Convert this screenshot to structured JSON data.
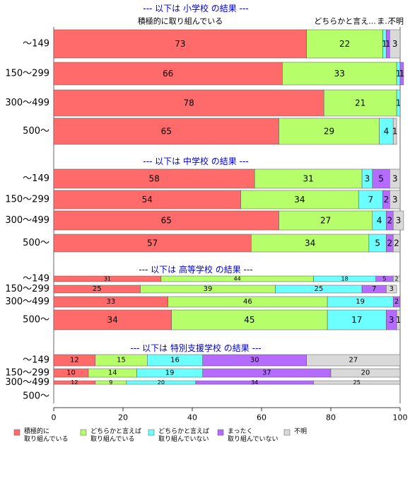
{
  "colors": [
    "#FF6B6B",
    "#B6FF6B",
    "#6BFFFF",
    "#B66BFF",
    "#D9D9D9"
  ],
  "legend": {
    "items": [
      {
        "line1": "積極的に",
        "line2": "取り組んでいる"
      },
      {
        "line1": "どちらかと言えば",
        "line2": "取り組んでいる"
      },
      {
        "line1": "どちらかと言えば",
        "line2": "取り組んでいない"
      },
      {
        "line1": "まったく",
        "line2": "取り組んでいない"
      },
      {
        "line1": "不明",
        "line2": ""
      }
    ]
  },
  "x_ticks": [
    "0",
    "20",
    "40",
    "60",
    "80",
    "100"
  ],
  "top_labels": [
    "積極的に取り組んでいる",
    "どちらかと言え...",
    "ま...",
    "不明"
  ],
  "chart_data": {
    "type": "bar",
    "orientation": "horizontal",
    "stacked": true,
    "xlim": [
      0,
      100
    ],
    "series_names": [
      "積極的に取り組んでいる",
      "どちらかと言えば取り組んでいる",
      "どちらかと言えば取り組んでいない",
      "まったく取り組んでいない",
      "不明"
    ],
    "panels": [
      {
        "title": "--- 以下は 小学校 の結果 ---",
        "rows": [
          {
            "category": "～149",
            "values": [
              73,
              22,
              1,
              1,
              3
            ],
            "labels": [
              "73",
              "22",
              "1",
              "1",
              "3"
            ]
          },
          {
            "category": "150～299",
            "values": [
              66,
              33,
              1,
              1,
              0
            ],
            "labels": [
              "66",
              "33",
              "1",
              "1",
              ""
            ]
          },
          {
            "category": "300～499",
            "values": [
              78,
              21,
              1,
              0,
              0
            ],
            "labels": [
              "78",
              "21",
              "1",
              "",
              ""
            ]
          },
          {
            "category": "500～",
            "values": [
              65,
              29,
              4,
              0,
              1
            ],
            "labels": [
              "65",
              "29",
              "4",
              "",
              "1"
            ]
          }
        ]
      },
      {
        "title": "--- 以下は 中学校 の結果 ---",
        "rows": [
          {
            "category": "～149",
            "values": [
              58,
              31,
              3,
              5,
              3
            ],
            "labels": [
              "58",
              "31",
              "3",
              "5",
              "3"
            ]
          },
          {
            "category": "150～299",
            "values": [
              54,
              34,
              7,
              2,
              3
            ],
            "labels": [
              "54",
              "34",
              "7",
              "2",
              "3"
            ]
          },
          {
            "category": "300～499",
            "values": [
              65,
              27,
              4,
              2,
              3
            ],
            "labels": [
              "65",
              "27",
              "4",
              "2",
              "3"
            ]
          },
          {
            "category": "500～",
            "values": [
              57,
              34,
              5,
              2,
              2
            ],
            "labels": [
              "57",
              "34",
              "5",
              "2",
              "2"
            ]
          }
        ]
      },
      {
        "title": "--- 以下は 高等学校 の結果 ---",
        "rows": [
          {
            "category": "～149",
            "values": [
              31,
              44,
              18,
              5,
              2
            ],
            "labels": [
              "31",
              "44",
              "18",
              "5",
              "2"
            ]
          },
          {
            "category": "150～299",
            "values": [
              25,
              39,
              25,
              7,
              3
            ],
            "labels": [
              "25",
              "39",
              "25",
              "7",
              "3"
            ]
          },
          {
            "category": "300～499",
            "values": [
              33,
              46,
              19,
              2,
              0
            ],
            "labels": [
              "33",
              "46",
              "19",
              "2",
              ""
            ]
          },
          {
            "category": "500～",
            "values": [
              34,
              45,
              17,
              3,
              1
            ],
            "labels": [
              "34",
              "45",
              "17",
              "3",
              "1"
            ]
          }
        ]
      },
      {
        "title": "--- 以下は 特別支援学校 の結果 ---",
        "rows": [
          {
            "category": "～149",
            "values": [
              12,
              15,
              16,
              30,
              27
            ],
            "labels": [
              "12",
              "15",
              "16",
              "30",
              "27"
            ]
          },
          {
            "category": "150～299",
            "values": [
              10,
              14,
              19,
              37,
              20
            ],
            "labels": [
              "10",
              "14",
              "19",
              "37",
              "20"
            ]
          },
          {
            "category": "300～499",
            "values": [
              12,
              9,
              20,
              34,
              25
            ],
            "labels": [
              "12",
              "9",
              "20",
              "34",
              "25"
            ]
          },
          {
            "category": "500～",
            "values": [],
            "labels": []
          }
        ]
      }
    ]
  }
}
